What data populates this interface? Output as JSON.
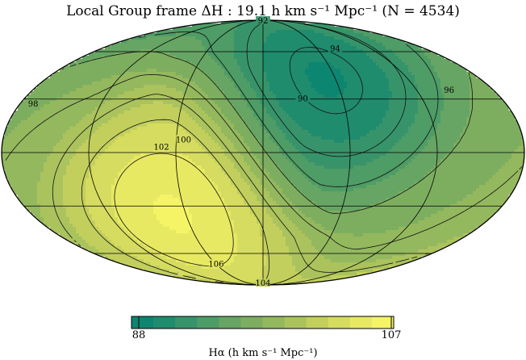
{
  "chart_data": {
    "type": "heatmap",
    "projection": "mollweide",
    "title": "Local Group frame ΔH : 19.1 h km s⁻¹ Mpc⁻¹ (N = 4534)",
    "colorbar": {
      "min": 88,
      "max": 107,
      "ticks": [
        "88",
        "107"
      ],
      "label": "Hα (h km s⁻¹ Mpc⁻¹)",
      "colors": [
        "#0c8671",
        "#1f8c6e",
        "#37946a",
        "#4e9c66",
        "#66a563",
        "#7dae60",
        "#94b85e",
        "#abc35d",
        "#c2cf5d",
        "#d6dc5f",
        "#e7e962",
        "#f5f466"
      ]
    },
    "grid": true,
    "features": {
      "min": {
        "value": 88.5,
        "lon": -40,
        "lat": 40
      },
      "max": {
        "value": 107,
        "lon": 60,
        "lat": -30
      }
    },
    "contour_labels": [
      {
        "text": "92",
        "lon": 0,
        "lat": 88
      },
      {
        "text": "94",
        "lon": -80,
        "lat": 62
      },
      {
        "text": "96",
        "lon": -145,
        "lat": 35
      },
      {
        "text": "90",
        "lon": -30,
        "lat": 30
      },
      {
        "text": "98",
        "lon": 170,
        "lat": 27
      },
      {
        "text": "100",
        "lon": 55,
        "lat": 7
      },
      {
        "text": "102",
        "lon": 70,
        "lat": 3
      },
      {
        "text": "104",
        "lon": 0,
        "lat": -87
      },
      {
        "text": "106",
        "lon": 60,
        "lat": -68
      }
    ]
  }
}
